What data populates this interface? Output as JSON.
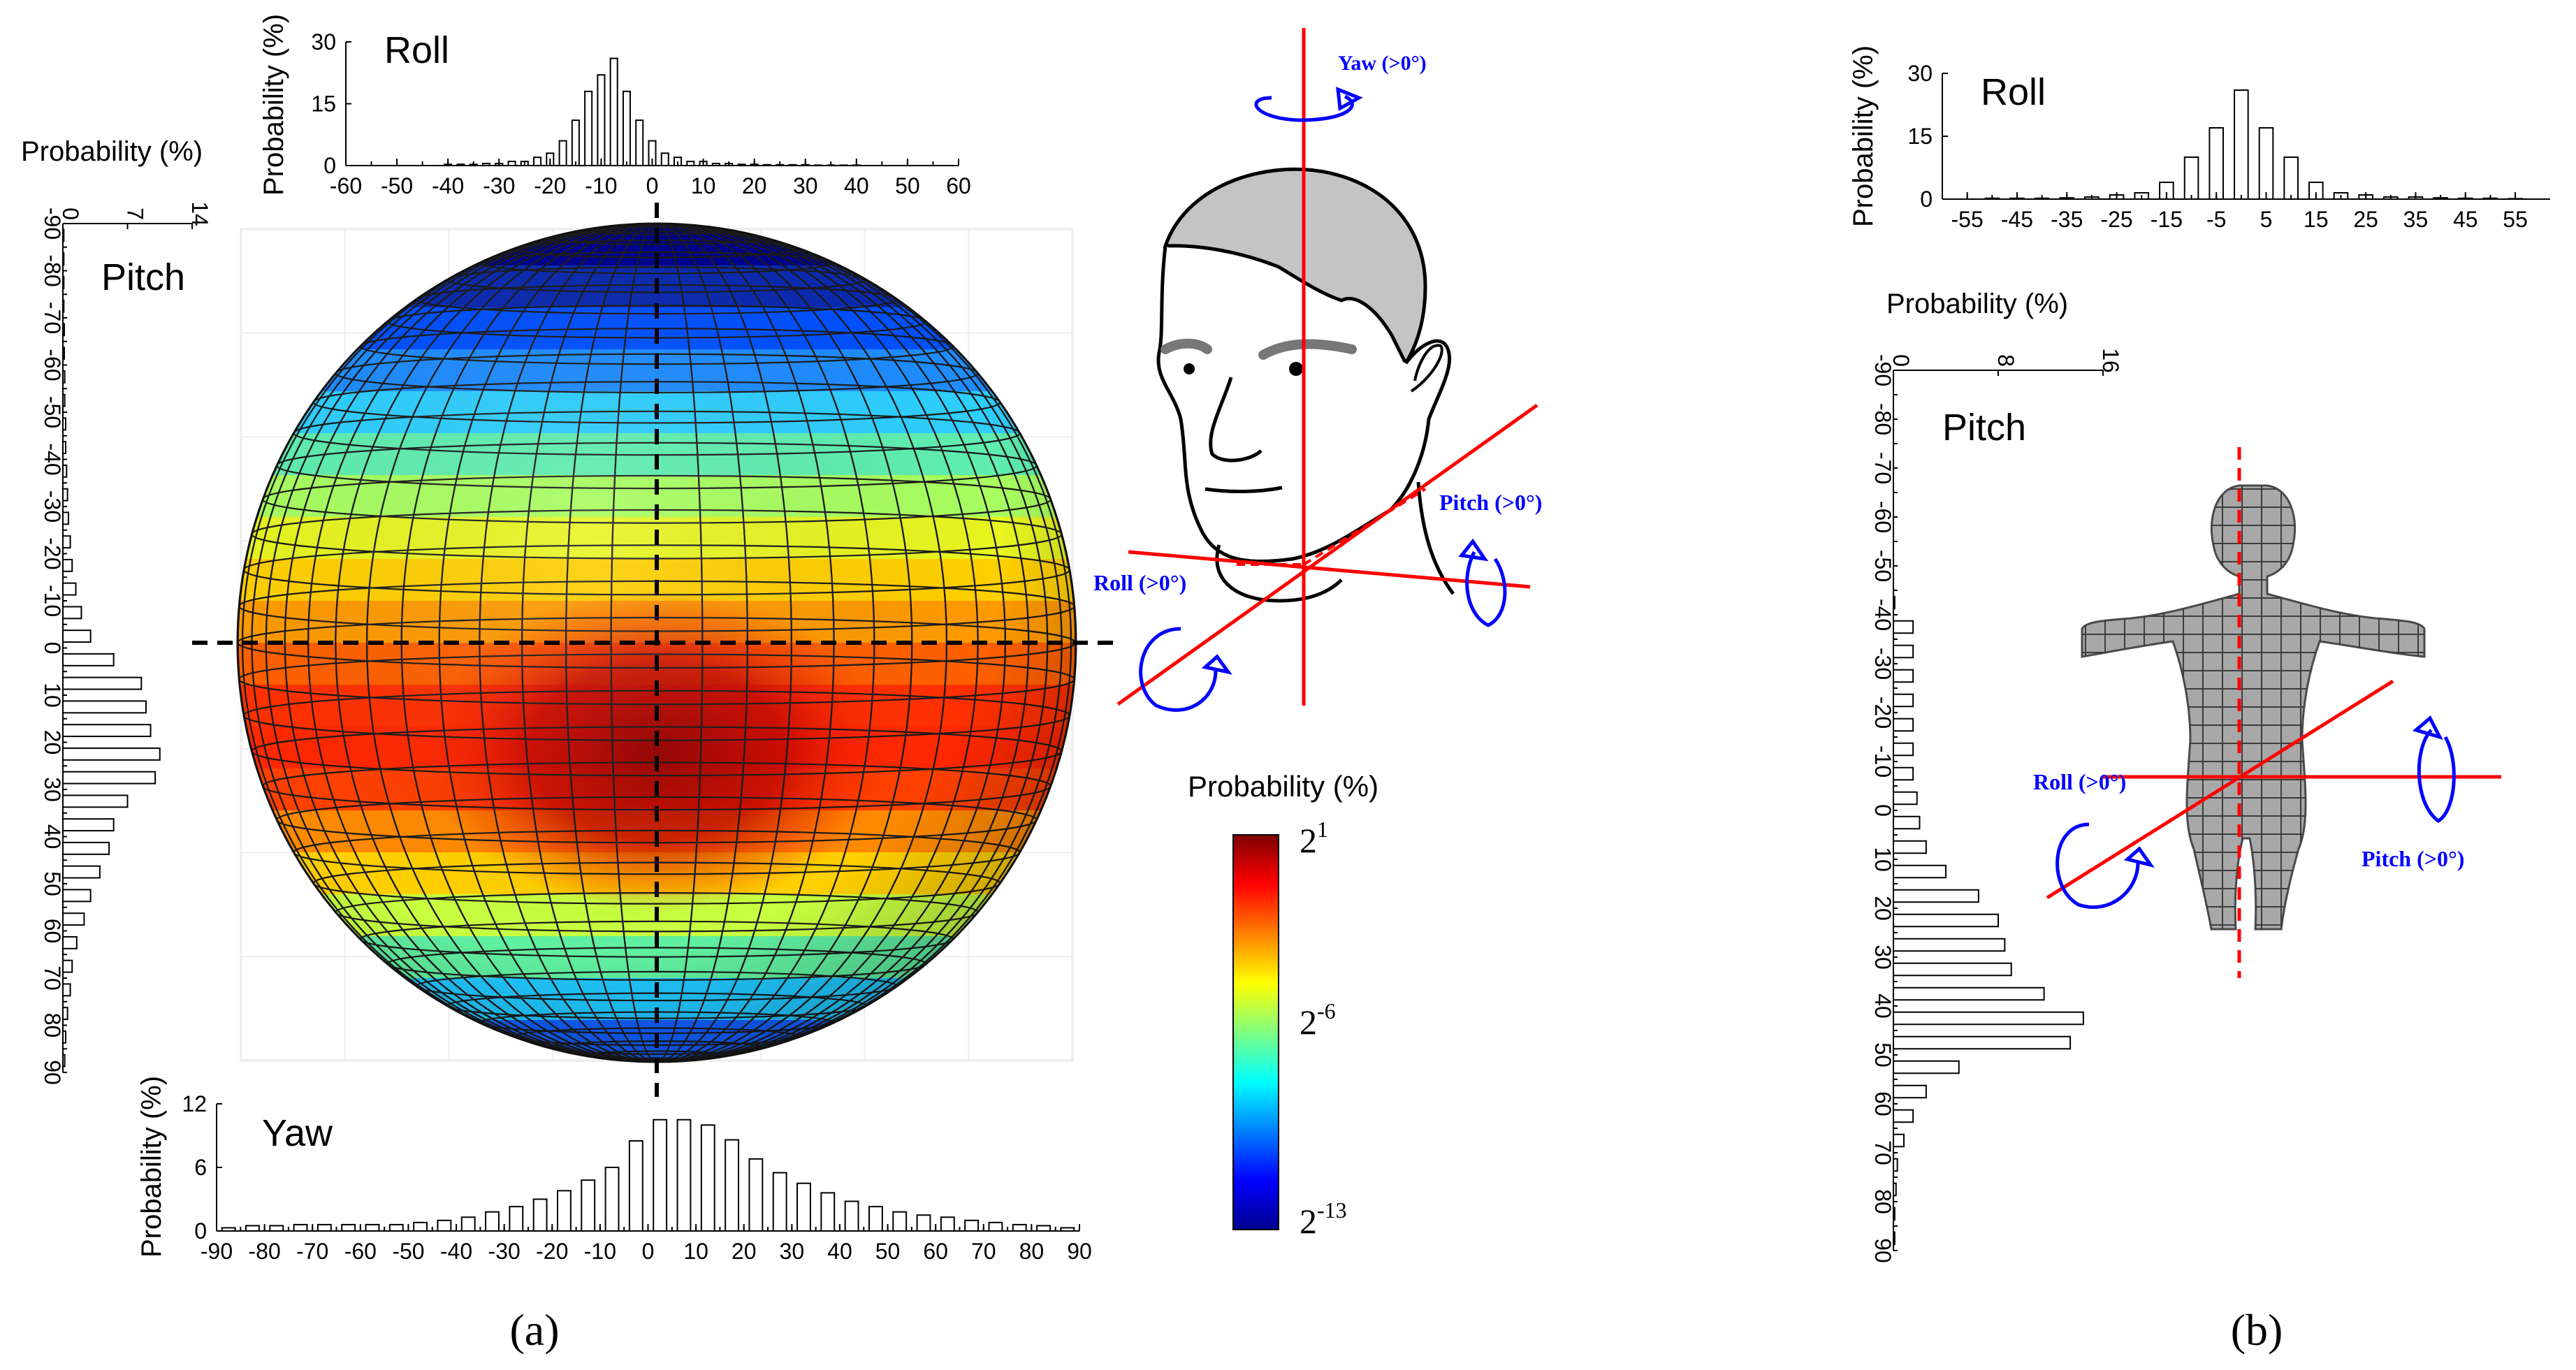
{
  "panels": {
    "a_label": "(a)",
    "b_label": "(b)"
  },
  "head_diagram": {
    "yaw_label": "Yaw (>0°)",
    "pitch_label": "Pitch (>0°)",
    "roll_label": "Roll (>0°)"
  },
  "body_diagram": {
    "pitch_label": "Pitch (>0°)",
    "roll_label": "Roll (>0°)"
  },
  "colorbar": {
    "title": "Probability (%)",
    "tick_bases": [
      "2",
      "2",
      "2"
    ],
    "tick_exponents": [
      "1",
      "-6",
      "-13"
    ],
    "colors": [
      "#7f0000",
      "#ff0000",
      "#ff8000",
      "#ffff00",
      "#80ff80",
      "#00ffff",
      "#0080ff",
      "#0000ff",
      "#00008f"
    ]
  },
  "sphere": {
    "band_colors": [
      "#00008f",
      "#0a2ab0",
      "#0050ff",
      "#1e8cff",
      "#2ecfff",
      "#5fefb0",
      "#a8ff60",
      "#e8f520",
      "#ffd000",
      "#ff9a00",
      "#ff6000",
      "#ff3000",
      "#ff2800",
      "#ff4000",
      "#ff8a00",
      "#ffd000",
      "#c8ff40",
      "#60f0a0",
      "#20c8ff",
      "#1060ff"
    ],
    "hot_color": "#b00000"
  },
  "chart_data": [
    {
      "type": "bar",
      "id": "a_roll",
      "title": "Roll",
      "ylabel": "Probability (%)",
      "x": [
        -60,
        -57.5,
        -55,
        -52.5,
        -50,
        -47.5,
        -45,
        -42.5,
        -40,
        -37.5,
        -35,
        -32.5,
        -30,
        -27.5,
        -25,
        -22.5,
        -20,
        -17.5,
        -15,
        -12.5,
        -10,
        -7.5,
        -5,
        -2.5,
        0,
        2.5,
        5,
        7.5,
        10,
        12.5,
        15,
        17.5,
        20,
        22.5,
        25,
        27.5,
        30,
        32.5,
        35,
        37.5,
        40,
        42.5,
        45,
        47.5,
        50,
        52.5,
        55,
        57.5
      ],
      "values": [
        0,
        0,
        0,
        0,
        0,
        0,
        0,
        0,
        0.3,
        0.3,
        0.3,
        0.5,
        0.5,
        1,
        1,
        2,
        3,
        6,
        11,
        18,
        22,
        26,
        18,
        11,
        6,
        3,
        2,
        1,
        1,
        0.5,
        0.5,
        0.3,
        0.3,
        0.2,
        0.2,
        0.2,
        0.2,
        0.1,
        0.1,
        0.1,
        0.1,
        0,
        0,
        0,
        0,
        0,
        0,
        0
      ],
      "xticks": [
        -60,
        -50,
        -40,
        -30,
        -20,
        -10,
        0,
        10,
        20,
        30,
        40,
        50,
        60
      ],
      "yticks": [
        0,
        15,
        30
      ],
      "xlim": [
        -60,
        60
      ],
      "ylim": [
        0,
        30
      ]
    },
    {
      "type": "bar",
      "id": "a_yaw",
      "title": "Yaw",
      "ylabel": "Probability (%)",
      "x": [
        -87.5,
        -82.5,
        -77.5,
        -72.5,
        -67.5,
        -62.5,
        -57.5,
        -52.5,
        -47.5,
        -42.5,
        -37.5,
        -32.5,
        -27.5,
        -22.5,
        -17.5,
        -12.5,
        -7.5,
        -2.5,
        2.5,
        7.5,
        12.5,
        17.5,
        22.5,
        27.5,
        32.5,
        37.5,
        42.5,
        47.5,
        52.5,
        57.5,
        62.5,
        67.5,
        72.5,
        77.5,
        82.5,
        87.5
      ],
      "values": [
        0.3,
        0.5,
        0.5,
        0.6,
        0.6,
        0.6,
        0.6,
        0.6,
        0.8,
        1,
        1.3,
        1.8,
        2.3,
        3,
        3.8,
        4.8,
        6,
        8.5,
        10.5,
        10.5,
        10,
        8.6,
        6.8,
        5.5,
        4.5,
        3.6,
        2.8,
        2.3,
        1.8,
        1.5,
        1.3,
        1,
        0.8,
        0.6,
        0.5,
        0.3
      ],
      "xticks": [
        -90,
        -80,
        -70,
        -60,
        -50,
        -40,
        -30,
        -20,
        -10,
        0,
        10,
        20,
        30,
        40,
        50,
        60,
        70,
        80,
        90
      ],
      "yticks": [
        0,
        6,
        12
      ],
      "xlim": [
        -90,
        90
      ],
      "ylim": [
        0,
        12
      ]
    },
    {
      "type": "bar",
      "orientation": "horizontal",
      "id": "a_pitch",
      "title": "Pitch",
      "xlabel": "Probability (%)",
      "x": [
        -87.5,
        -82.5,
        -77.5,
        -72.5,
        -67.5,
        -62.5,
        -57.5,
        -52.5,
        -47.5,
        -42.5,
        -37.5,
        -32.5,
        -27.5,
        -22.5,
        -17.5,
        -12.5,
        -7.5,
        -2.5,
        2.5,
        7.5,
        12.5,
        17.5,
        22.5,
        27.5,
        32.5,
        37.5,
        42.5,
        47.5,
        52.5,
        57.5,
        62.5,
        67.5,
        72.5,
        77.5,
        82.5,
        87.5
      ],
      "values": [
        0.1,
        0.1,
        0.1,
        0.1,
        0.15,
        0.15,
        0.2,
        0.2,
        0.3,
        0.3,
        0.4,
        0.5,
        0.6,
        0.8,
        1,
        1.4,
        2,
        3,
        5.5,
        8.5,
        9,
        9.5,
        10.5,
        10,
        7,
        5.5,
        5,
        4,
        3,
        2.3,
        1.5,
        1,
        0.8,
        0.5,
        0.3,
        0.2
      ],
      "xticks": [
        0,
        7,
        14
      ],
      "yticks": [
        -90,
        -80,
        -70,
        -60,
        -50,
        -40,
        -30,
        -20,
        -10,
        0,
        10,
        20,
        30,
        40,
        50,
        60,
        70,
        80,
        90
      ],
      "xlim": [
        0,
        14
      ],
      "ylim": [
        -90,
        90
      ]
    },
    {
      "type": "bar",
      "id": "b_roll",
      "title": "Roll",
      "ylabel": "Probability (%)",
      "x": [
        -55,
        -50,
        -45,
        -40,
        -35,
        -30,
        -25,
        -20,
        -15,
        -10,
        -5,
        0,
        5,
        10,
        15,
        20,
        25,
        30,
        35,
        40,
        45,
        50,
        55,
        60
      ],
      "values": [
        0,
        0.2,
        0.2,
        0.2,
        0.3,
        0.5,
        1,
        1.5,
        4,
        10,
        17,
        26,
        17,
        10,
        4,
        1.5,
        1,
        0.5,
        0.5,
        0.3,
        0.2,
        0.2,
        0.1,
        0
      ],
      "xticks": [
        -55,
        -45,
        -35,
        -25,
        -15,
        -5,
        5,
        15,
        25,
        35,
        45,
        55
      ],
      "yticks": [
        0,
        15,
        30
      ],
      "xlim": [
        -60,
        62
      ],
      "ylim": [
        0,
        30
      ]
    },
    {
      "type": "bar",
      "orientation": "horizontal",
      "id": "b_pitch",
      "title": "Pitch",
      "xlabel": "Probability (%)",
      "x": [
        -87.5,
        -82.5,
        -77.5,
        -72.5,
        -67.5,
        -62.5,
        -57.5,
        -52.5,
        -47.5,
        -42.5,
        -37.5,
        -32.5,
        -27.5,
        -22.5,
        -17.5,
        -12.5,
        -7.5,
        -2.5,
        2.5,
        7.5,
        12.5,
        17.5,
        22.5,
        27.5,
        32.5,
        37.5,
        42.5,
        47.5,
        52.5,
        57.5,
        62.5,
        67.5,
        72.5,
        77.5,
        82.5,
        87.5
      ],
      "values": [
        0,
        0,
        0,
        0,
        0,
        0,
        0,
        0,
        0,
        0.1,
        1.5,
        1.5,
        1.5,
        1.5,
        1.5,
        1.5,
        1.5,
        1.8,
        2,
        2.5,
        4,
        6.5,
        8,
        8.5,
        9,
        11.5,
        14.5,
        13.5,
        5,
        2.5,
        1.5,
        0.8,
        0.3,
        0.2,
        0.1,
        0.1
      ],
      "xticks": [
        0,
        8,
        16
      ],
      "yticks": [
        -90,
        -80,
        -70,
        -60,
        -50,
        -40,
        -30,
        -20,
        -10,
        0,
        10,
        20,
        30,
        40,
        50,
        60,
        70,
        80,
        90
      ],
      "xlim": [
        0,
        16
      ],
      "ylim": [
        -90,
        90
      ]
    }
  ]
}
